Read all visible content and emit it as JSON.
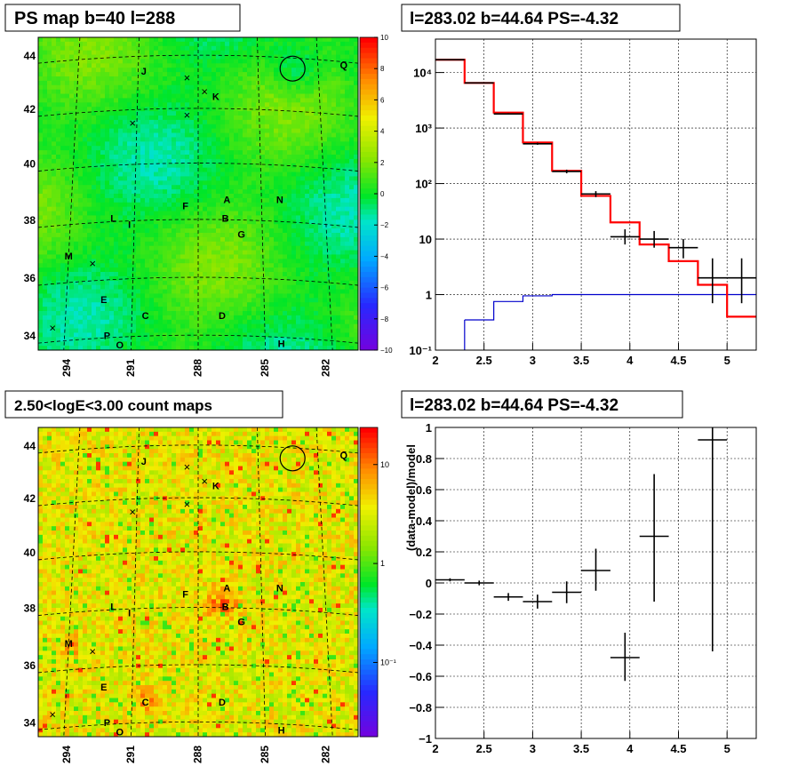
{
  "colors": {
    "background": "#ffffff",
    "frame": "#000000",
    "model_line": "#ff0000",
    "diffuse_line": "#0000cc",
    "data_marker": "#000000",
    "grid": "#000000"
  },
  "panels": {
    "ps_map": {
      "title": "PS map b=40 l=288",
      "kind": "sky-map",
      "palette": "rainbow (purple-blue-cyan-green-yellow-orange-red)",
      "ylabels": [
        "34",
        "36",
        "38",
        "40",
        "42",
        "44"
      ],
      "xlabels": [
        "294",
        "291",
        "288",
        "285",
        "282"
      ],
      "colorbar_labels": [
        "10",
        "8",
        "6",
        "4",
        "2",
        "0",
        "−2",
        "−4",
        "−6",
        "−8",
        "−10"
      ],
      "sources": [
        "Q",
        "J",
        "K",
        "F",
        "A",
        "N",
        "L",
        "I",
        "B",
        "G",
        "M",
        "E",
        "C",
        "D",
        "P",
        "O",
        "H"
      ],
      "markers": [
        "×",
        "×",
        "×",
        "×",
        "×"
      ]
    },
    "count_map": {
      "title": "2.50<logE<3.00 count maps",
      "kind": "sky-map",
      "palette": "rainbow log scale",
      "ylabels": [
        "34",
        "36",
        "38",
        "40",
        "42",
        "44"
      ],
      "xlabels": [
        "294",
        "291",
        "288",
        "285",
        "282"
      ],
      "colorbar_labels": [
        "10",
        "1",
        "10⁻¹"
      ],
      "sources": [
        "Q",
        "J",
        "K",
        "F",
        "A",
        "N",
        "L",
        "I",
        "B",
        "G",
        "M",
        "E",
        "C",
        "D",
        "P",
        "O",
        "H"
      ],
      "markers": [
        "×",
        "×",
        "×",
        "×",
        "×"
      ]
    },
    "spectrum": {
      "title": "l=283.02 b=44.64 PS=-4.32",
      "xticks": [
        "2",
        "2.5",
        "3",
        "3.5",
        "4",
        "4.5",
        "5"
      ],
      "yticks": [
        "10⁻¹",
        "1",
        "10",
        "10²",
        "10³",
        "10⁴"
      ]
    },
    "residual": {
      "title": "l=283.02 b=44.64 PS=-4.32",
      "ylabel": "(data-model)/model",
      "xticks": [
        "2",
        "2.5",
        "3",
        "3.5",
        "4",
        "4.5",
        "5"
      ],
      "yticks": [
        "−1",
        "−0.8",
        "−0.6",
        "−0.4",
        "−0.2",
        "0",
        "0.2",
        "0.4",
        "0.6",
        "0.8",
        "1"
      ]
    }
  },
  "chart_data": [
    {
      "type": "heatmap",
      "title": "PS map b=40 l=288",
      "x_range": [
        296,
        280
      ],
      "y_range": [
        33.8,
        45.8
      ],
      "z_range": [
        -10,
        10
      ],
      "z_ticks": [
        10,
        8,
        6,
        4,
        2,
        0,
        -2,
        -4,
        -6,
        -8,
        -10
      ],
      "x_ticks": [
        294,
        291,
        288,
        285,
        282
      ],
      "y_ticks": [
        34,
        36,
        38,
        40,
        42,
        44
      ],
      "grid": true
    },
    {
      "type": "heatmap",
      "title": "2.50<logE<3.00 count maps",
      "x_range": [
        296,
        280
      ],
      "y_range": [
        33.8,
        45.8
      ],
      "z_scale": "log",
      "z_ticks": [
        10,
        1,
        0.1
      ],
      "x_ticks": [
        294,
        291,
        288,
        285,
        282
      ],
      "y_ticks": [
        34,
        36,
        38,
        40,
        42,
        44
      ],
      "grid": true
    },
    {
      "type": "line",
      "title": "l=283.02 b=44.64 PS=-4.32",
      "x_range": [
        2,
        5.3
      ],
      "y_range": [
        0.1,
        40000
      ],
      "y_scale": "log",
      "grid": true,
      "series": [
        {
          "style": "histogram",
          "color": "#ff0000",
          "edges": [
            2,
            2.3,
            2.6,
            2.9,
            3.2,
            3.5,
            3.8,
            4.1,
            4.4,
            4.7,
            5.0,
            5.3
          ],
          "values": [
            17000,
            6500,
            1900,
            550,
            170,
            60,
            20,
            8,
            4,
            1.5,
            0.4
          ]
        },
        {
          "style": "histogram",
          "color": "#0000cc",
          "edges": [
            2.3,
            2.6,
            2.9,
            3.2,
            3.5,
            3.8,
            4.1,
            4.4,
            4.7,
            5.0,
            5.3
          ],
          "values": [
            0.35,
            0.75,
            0.95,
            1.0,
            1.0,
            1.0,
            1.0,
            1.0,
            1.0,
            1.0
          ]
        },
        {
          "style": "points-with-errors",
          "color": "#000000",
          "points": [
            {
              "x": 2.15,
              "xerr": 0.15,
              "y": 17000,
              "ylo": 16800,
              "yhi": 17200
            },
            {
              "x": 2.45,
              "xerr": 0.15,
              "y": 6500,
              "ylo": 6400,
              "yhi": 6600
            },
            {
              "x": 2.75,
              "xerr": 0.15,
              "y": 1800,
              "ylo": 1750,
              "yhi": 1850
            },
            {
              "x": 3.05,
              "xerr": 0.15,
              "y": 520,
              "ylo": 500,
              "yhi": 545
            },
            {
              "x": 3.35,
              "xerr": 0.15,
              "y": 165,
              "ylo": 153,
              "yhi": 178
            },
            {
              "x": 3.65,
              "xerr": 0.15,
              "y": 65,
              "ylo": 57,
              "yhi": 73
            },
            {
              "x": 3.95,
              "xerr": 0.15,
              "y": 11,
              "ylo": 8,
              "yhi": 15
            },
            {
              "x": 4.25,
              "xerr": 0.15,
              "y": 10,
              "ylo": 7,
              "yhi": 14
            },
            {
              "x": 4.55,
              "xerr": 0.15,
              "y": 7,
              "ylo": 4.5,
              "yhi": 10
            },
            {
              "x": 4.85,
              "xerr": 0.15,
              "y": 2,
              "ylo": 0.7,
              "yhi": 4.5
            },
            {
              "x": 5.15,
              "xerr": 0.15,
              "y": 2,
              "ylo": 0.7,
              "yhi": 4.5
            }
          ]
        }
      ]
    },
    {
      "type": "scatter",
      "title": "l=283.02 b=44.64 PS=-4.32",
      "ylabel": "(data-model)/model",
      "x_range": [
        2,
        5.3
      ],
      "y_range": [
        -1,
        1
      ],
      "grid": true,
      "points": [
        {
          "x": 2.15,
          "xerr": 0.15,
          "y": 0.02,
          "ylo": 0.01,
          "yhi": 0.03
        },
        {
          "x": 2.45,
          "xerr": 0.15,
          "y": 0.0,
          "ylo": -0.015,
          "yhi": 0.015
        },
        {
          "x": 2.75,
          "xerr": 0.15,
          "y": -0.09,
          "ylo": -0.115,
          "yhi": -0.065
        },
        {
          "x": 3.05,
          "xerr": 0.15,
          "y": -0.12,
          "ylo": -0.165,
          "yhi": -0.075
        },
        {
          "x": 3.35,
          "xerr": 0.15,
          "y": -0.06,
          "ylo": -0.13,
          "yhi": 0.01
        },
        {
          "x": 3.65,
          "xerr": 0.15,
          "y": 0.08,
          "ylo": -0.05,
          "yhi": 0.22
        },
        {
          "x": 3.95,
          "xerr": 0.15,
          "y": -0.48,
          "ylo": -0.63,
          "yhi": -0.32
        },
        {
          "x": 4.25,
          "xerr": 0.15,
          "y": 0.3,
          "ylo": -0.12,
          "yhi": 0.7
        },
        {
          "x": 4.85,
          "xerr": 0.15,
          "y": 0.92,
          "ylo": -0.44,
          "yhi": 1.0
        }
      ]
    }
  ]
}
